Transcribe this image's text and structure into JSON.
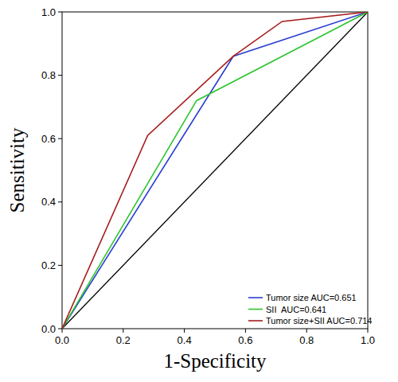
{
  "chart_data": {
    "type": "line",
    "x_label": "1-Specificity",
    "y_label": "Sensitivity",
    "xlim": [
      0,
      1
    ],
    "ylim": [
      0,
      1
    ],
    "xticks": [
      {
        "value": 0,
        "label": "0.0"
      },
      0.2,
      0.4,
      0.6,
      0.8,
      {
        "value": 1,
        "label": "1.0"
      }
    ],
    "yticks": [
      {
        "value": 0,
        "label": "0.0"
      },
      0.2,
      0.4,
      0.6,
      0.8,
      {
        "value": 1,
        "label": "1.0"
      }
    ],
    "grid": false,
    "legend": "lower right",
    "series": [
      {
        "name": "Tumor size AUC=0.651",
        "color": "#2b3fd0",
        "x": [
          0,
          0.56,
          1
        ],
        "values": [
          0,
          0.86,
          1
        ]
      },
      {
        "name": "SII  AUC=0.641",
        "color": "#2ec52e",
        "x": [
          0,
          0.44,
          1
        ],
        "values": [
          0,
          0.72,
          1
        ]
      },
      {
        "name": "Tumor size+SII AUC=0.714",
        "color": "#a81c1c",
        "x": [
          0,
          0.28,
          0.56,
          0.72,
          1
        ],
        "values": [
          0,
          0.61,
          0.86,
          0.97,
          1
        ]
      }
    ],
    "reference_line": {
      "color": "#000000",
      "x": [
        0,
        1
      ],
      "values": [
        0,
        1
      ]
    }
  }
}
